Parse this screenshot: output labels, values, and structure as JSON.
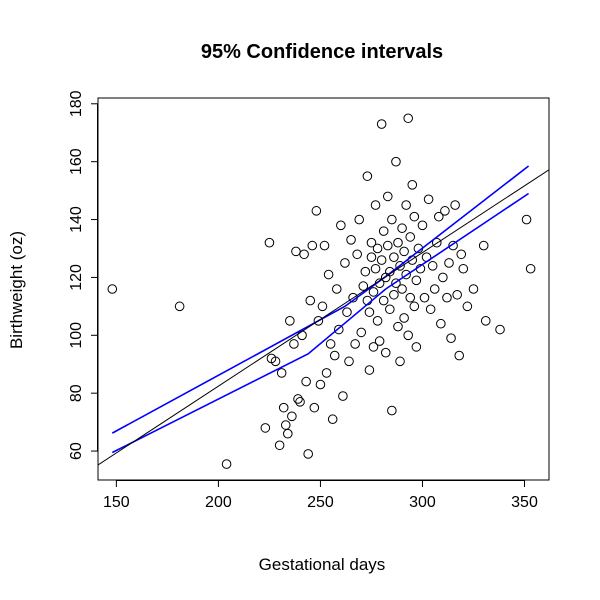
{
  "chart_data": {
    "type": "scatter",
    "title": "95% Confidence intervals",
    "xlabel": "Gestational days",
    "ylabel": "Birthweight (oz)",
    "xlim": [
      141,
      362
    ],
    "ylim": [
      50,
      182
    ],
    "x_ticks": [
      150,
      200,
      250,
      300,
      350
    ],
    "y_ticks": [
      60,
      80,
      100,
      120,
      140,
      160,
      180
    ],
    "x_tick_labels": [
      "150",
      "200",
      "250",
      "300",
      "350"
    ],
    "y_tick_labels": [
      "60",
      "80",
      "100",
      "120",
      "140",
      "160",
      "180"
    ],
    "grid": false,
    "legend": "none",
    "colors": {
      "points": "#000000",
      "fit_line": "#000000",
      "confidence_band": "#0000ff"
    },
    "fit_line": {
      "x": [
        141,
        362
      ],
      "y": [
        55.2,
        157.2
      ]
    },
    "confidence_band": {
      "lower": {
        "x": [
          148,
          244,
          282,
          352
        ],
        "y": [
          59.5,
          93.6,
          116.0,
          149.0
        ]
      },
      "upper": {
        "x": [
          148,
          262,
          282,
          352
        ],
        "y": [
          66.2,
          110.0,
          120.3,
          158.5
        ]
      }
    },
    "points": [
      [
        148,
        116
      ],
      [
        181,
        110
      ],
      [
        204,
        55.5
      ],
      [
        223,
        68
      ],
      [
        225,
        132
      ],
      [
        226,
        92
      ],
      [
        228,
        91
      ],
      [
        230,
        62
      ],
      [
        231,
        87
      ],
      [
        232,
        75
      ],
      [
        233,
        69
      ],
      [
        234,
        66
      ],
      [
        235,
        105
      ],
      [
        236,
        72
      ],
      [
        237,
        97
      ],
      [
        238,
        129
      ],
      [
        239,
        78
      ],
      [
        240,
        77
      ],
      [
        241,
        100
      ],
      [
        242,
        128
      ],
      [
        243,
        84
      ],
      [
        244,
        59
      ],
      [
        245,
        112
      ],
      [
        246,
        131
      ],
      [
        247,
        75
      ],
      [
        248,
        143
      ],
      [
        249,
        105
      ],
      [
        250,
        83
      ],
      [
        251,
        110
      ],
      [
        252,
        131
      ],
      [
        253,
        87
      ],
      [
        254,
        121
      ],
      [
        255,
        97
      ],
      [
        256,
        71
      ],
      [
        257,
        93
      ],
      [
        258,
        116
      ],
      [
        259,
        102
      ],
      [
        260,
        138
      ],
      [
        261,
        79
      ],
      [
        262,
        125
      ],
      [
        263,
        108
      ],
      [
        264,
        91
      ],
      [
        265,
        133
      ],
      [
        266,
        113
      ],
      [
        267,
        97
      ],
      [
        268,
        128
      ],
      [
        269,
        140
      ],
      [
        270,
        101
      ],
      [
        271,
        117
      ],
      [
        272,
        122
      ],
      [
        273,
        112
      ],
      [
        273,
        155
      ],
      [
        274,
        108
      ],
      [
        274,
        88
      ],
      [
        275,
        127
      ],
      [
        275,
        132
      ],
      [
        276,
        96
      ],
      [
        276,
        115
      ],
      [
        277,
        123
      ],
      [
        277,
        145
      ],
      [
        278,
        105
      ],
      [
        278,
        130
      ],
      [
        279,
        118
      ],
      [
        279,
        98
      ],
      [
        280,
        126
      ],
      [
        280,
        173
      ],
      [
        281,
        112
      ],
      [
        281,
        136
      ],
      [
        282,
        120
      ],
      [
        282,
        94
      ],
      [
        283,
        131
      ],
      [
        283,
        148
      ],
      [
        284,
        109
      ],
      [
        284,
        122
      ],
      [
        285,
        140
      ],
      [
        285,
        74
      ],
      [
        286,
        114
      ],
      [
        286,
        127
      ],
      [
        287,
        118
      ],
      [
        287,
        160
      ],
      [
        288,
        103
      ],
      [
        288,
        132
      ],
      [
        289,
        124
      ],
      [
        289,
        91
      ],
      [
        290,
        137
      ],
      [
        290,
        116
      ],
      [
        291,
        106
      ],
      [
        291,
        129
      ],
      [
        292,
        145
      ],
      [
        292,
        121
      ],
      [
        293,
        175
      ],
      [
        293,
        100
      ],
      [
        294,
        134
      ],
      [
        294,
        113
      ],
      [
        295,
        126
      ],
      [
        295,
        152
      ],
      [
        296,
        110
      ],
      [
        296,
        141
      ],
      [
        297,
        119
      ],
      [
        297,
        96
      ],
      [
        298,
        130
      ],
      [
        299,
        123
      ],
      [
        300,
        138
      ],
      [
        301,
        113
      ],
      [
        302,
        127
      ],
      [
        303,
        147
      ],
      [
        304,
        109
      ],
      [
        305,
        124
      ],
      [
        306,
        116
      ],
      [
        307,
        132
      ],
      [
        308,
        141
      ],
      [
        309,
        104
      ],
      [
        310,
        120
      ],
      [
        311,
        143
      ],
      [
        312,
        113
      ],
      [
        313,
        125
      ],
      [
        314,
        99
      ],
      [
        315,
        131
      ],
      [
        316,
        145
      ],
      [
        317,
        114
      ],
      [
        318,
        93
      ],
      [
        319,
        128
      ],
      [
        320,
        123
      ],
      [
        322,
        110
      ],
      [
        325,
        116
      ],
      [
        330,
        131
      ],
      [
        331,
        105
      ],
      [
        338,
        102
      ],
      [
        351,
        140
      ],
      [
        353,
        123
      ]
    ]
  }
}
